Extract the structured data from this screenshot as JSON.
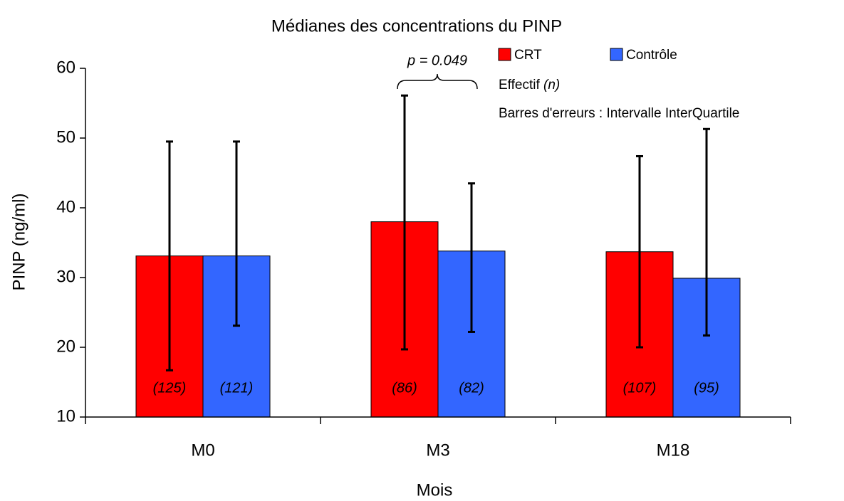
{
  "chart_data": {
    "type": "bar",
    "title": "Médianes des concentrations du PINP",
    "x_label": "Mois",
    "y_label": "PINP (ng/ml)",
    "categories": [
      "M0",
      "M3",
      "M18"
    ],
    "series": [
      {
        "name": "CRT",
        "color": "#ff0000",
        "values": [
          33.1,
          38.0,
          33.7
        ],
        "iqr_low": [
          16.7,
          19.7,
          20.0
        ],
        "iqr_high": [
          49.5,
          56.1,
          47.4
        ],
        "counts": [
          125,
          86,
          107
        ],
        "count_labels": [
          "(125)",
          "(86)",
          "(107)"
        ]
      },
      {
        "name": "Contrôle",
        "color": "#3366ff",
        "values": [
          33.1,
          33.8,
          29.9
        ],
        "iqr_low": [
          23.1,
          22.2,
          21.7
        ],
        "iqr_high": [
          49.5,
          43.5,
          51.3
        ],
        "counts": [
          121,
          82,
          95
        ],
        "count_labels": [
          "(121)",
          "(82)",
          "(95)"
        ]
      }
    ],
    "ylim": [
      10,
      60
    ],
    "yticks": [
      10,
      20,
      30,
      40,
      50,
      60
    ],
    "legend_notes": {
      "effectif": "Effectif ",
      "effectif_symbol": "(n)",
      "error_bars": "Barres d'erreurs : Intervalle InterQuartile"
    },
    "annotation": "p = 0.049"
  }
}
